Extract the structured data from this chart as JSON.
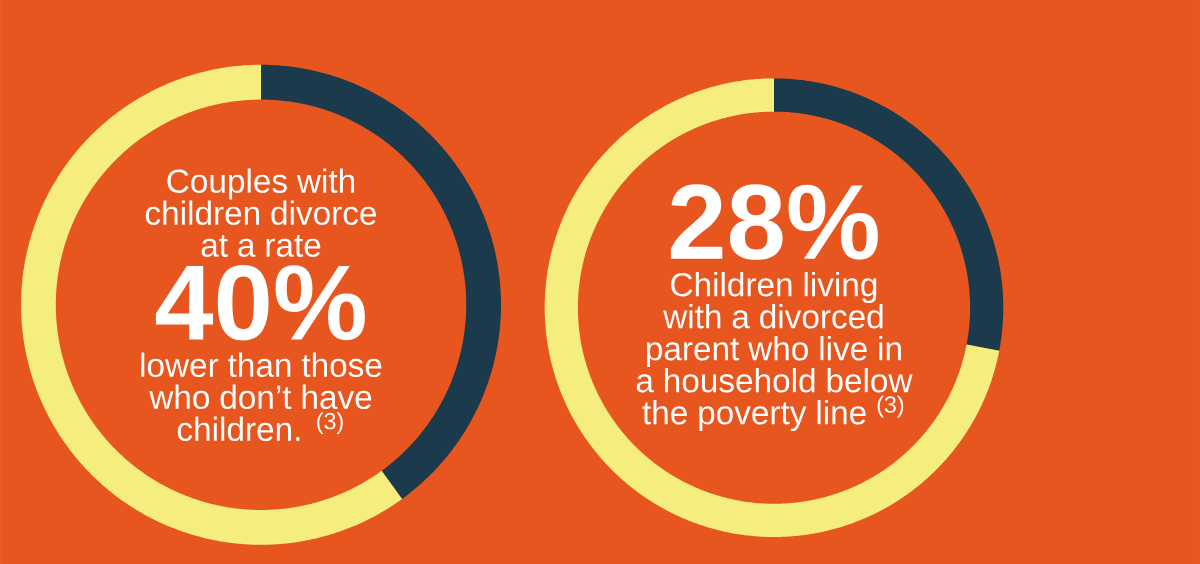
{
  "chart_data": [
    {
      "type": "donut",
      "categories": [
        null,
        null
      ],
      "values": [
        40,
        60
      ],
      "colors": [
        "#1b3a4b",
        "#f5ee7f"
      ],
      "value_labels": [
        "40%",
        null
      ],
      "annotations": [
        "Couples with children divorce at a rate",
        "lower than those who don’t have children. $^{(3)}$"
      ]
    },
    {
      "type": "donut",
      "categories": [
        null,
        null
      ],
      "values": [
        28,
        72
      ],
      "colors": [
        "#1b3a4b",
        "#f5ee7f"
      ],
      "value_labels": [
        "28%",
        null
      ],
      "annotations": [
        "Children living with a divorced parent who live in a household below the poverty line $^{(3)}$"
      ]
    }
  ]
}
